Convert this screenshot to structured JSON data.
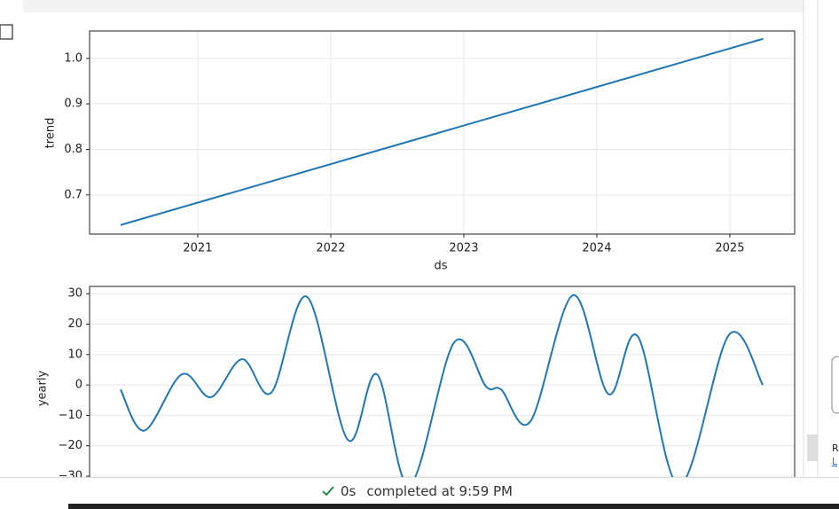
{
  "chart_data": [
    {
      "type": "line",
      "x_label": "ds",
      "y_label": "trend",
      "x": [
        2020.42,
        2025.25
      ],
      "series": [
        {
          "name": "trend",
          "color": "#1f77b4",
          "values": [
            0.634,
            1.043
          ]
        }
      ],
      "xlim": [
        2020.187,
        2025.487
      ],
      "xticks": [
        2021,
        2022,
        2023,
        2024,
        2025
      ],
      "ylim": [
        0.614,
        1.06
      ],
      "yticks": [
        0.7,
        0.8,
        0.9,
        {
          "value": 1,
          "label": "1.0"
        }
      ],
      "grid": true
    },
    {
      "type": "line",
      "y_label": "yearly",
      "x": [
        0,
        13.6,
        34.8,
        51.4,
        69.1,
        85.7,
        105.9,
        129.1,
        145.7,
        164.3,
        189.6,
        207.7,
        216.3,
        232.9,
        257.1,
        277.3,
        293.9,
        317.6,
        345.8,
        365
      ],
      "series": [
        {
          "name": "yearly",
          "color": "#1f77b4",
          "values": [
            -1.5,
            -15,
            3.5,
            -4,
            8.5,
            -2.5,
            29,
            -18,
            3.5,
            -33,
            14,
            -0.5,
            -1.5,
            -12,
            29.5,
            -3,
            16,
            -33,
            16.5,
            0
          ]
        }
      ],
      "xlim": [
        -17.6,
        383.1
      ],
      "ylim": [
        -36.7,
        32.4
      ],
      "yticks": [
        {
          "value": -30,
          "label": "−30"
        },
        {
          "value": -20,
          "label": "−20"
        },
        {
          "value": -10,
          "label": "−10"
        },
        0,
        10,
        20,
        30
      ],
      "grid": true
    }
  ],
  "status": {
    "duration": "0s",
    "message": "completed at 9:59 PM"
  },
  "side": {
    "letter_1": "R",
    "letter_2": "L"
  }
}
